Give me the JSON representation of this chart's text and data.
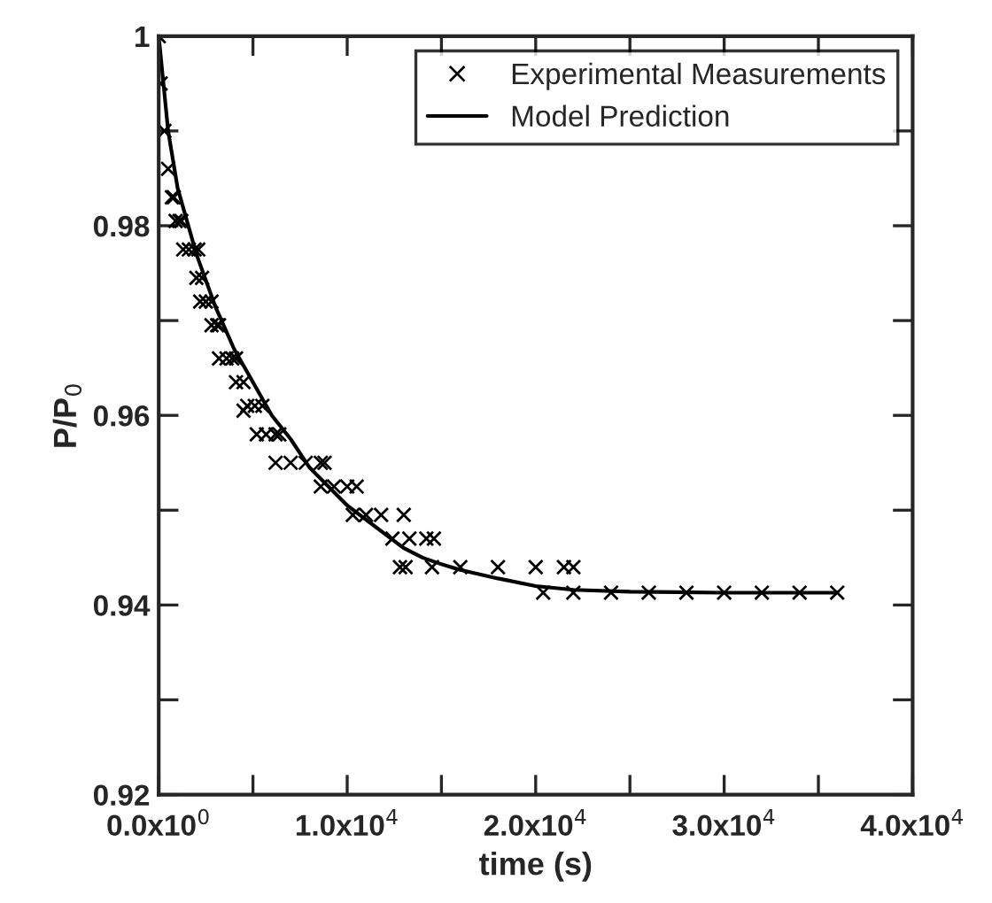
{
  "chart_data": {
    "type": "scatter",
    "xlabel": "time (s)",
    "ylabel": "P/P$_{0}$",
    "xlim": [
      0,
      40000
    ],
    "ylim": [
      0.92,
      1.0
    ],
    "xticks": [
      {
        "value": 0,
        "label": "0.0x10$^{0}$"
      },
      {
        "value": 5000,
        "label": null
      },
      {
        "value": 10000,
        "label": "1.0x10$^{4}$"
      },
      {
        "value": 15000,
        "label": null
      },
      {
        "value": 20000,
        "label": "2.0x10$^{4}$"
      },
      {
        "value": 25000,
        "label": null
      },
      {
        "value": 30000,
        "label": "3.0x10$^{4}$"
      },
      {
        "value": 35000,
        "label": null
      },
      {
        "value": 40000,
        "label": "4.0x10$^{4}$"
      }
    ],
    "yticks": [
      0.92,
      {
        "value": 0.93,
        "label": null
      },
      0.94,
      {
        "value": 0.95,
        "label": null
      },
      0.96,
      {
        "value": 0.97,
        "label": null
      },
      0.98,
      {
        "value": 0.99,
        "label": null
      },
      1
    ],
    "grid": false,
    "legend": "top right",
    "series": [
      {
        "name": "Experimental Measurements",
        "marker": "cross",
        "color": "#000000",
        "x": [
          0,
          100,
          300,
          500,
          700,
          800,
          900,
          1100,
          1200,
          1300,
          1600,
          1900,
          2100,
          2000,
          2300,
          2200,
          2500,
          2800,
          2800,
          3100,
          3200,
          3200,
          3600,
          3900,
          4100,
          4100,
          4500,
          4500,
          4700,
          5100,
          5500,
          5200,
          5700,
          6200,
          6400,
          6200,
          7000,
          7800,
          8600,
          8800,
          8600,
          9300,
          10000,
          10500,
          10300,
          11000,
          11800,
          13000,
          12400,
          13300,
          14200,
          12800,
          14600,
          13100,
          14500,
          16000,
          18000,
          20000,
          21500,
          22000,
          20400,
          22000,
          24000,
          26000,
          28000,
          30000,
          32000,
          34000,
          36000
        ],
        "values": [
          1.0,
          0.995,
          0.99,
          0.986,
          0.983,
          0.983,
          0.9805,
          0.9805,
          0.9805,
          0.9775,
          0.9775,
          0.9775,
          0.9775,
          0.9745,
          0.9745,
          0.972,
          0.972,
          0.972,
          0.9695,
          0.9695,
          0.9695,
          0.966,
          0.966,
          0.966,
          0.966,
          0.9635,
          0.9635,
          0.9605,
          0.961,
          0.961,
          0.961,
          0.958,
          0.958,
          0.958,
          0.958,
          0.955,
          0.955,
          0.955,
          0.955,
          0.955,
          0.9525,
          0.9525,
          0.9525,
          0.9525,
          0.9495,
          0.9495,
          0.9495,
          0.9495,
          0.947,
          0.947,
          0.947,
          0.944,
          0.947,
          0.944,
          0.944,
          0.944,
          0.944,
          0.944,
          0.944,
          0.944,
          0.9413,
          0.9413,
          0.9413,
          0.9413,
          0.9413,
          0.9413,
          0.9413,
          0.9413,
          0.9413
        ]
      },
      {
        "name": "Model Prediction",
        "type": "line",
        "line_style": "solid",
        "color": "#000000",
        "x": [
          0,
          500,
          1000,
          2000,
          3000,
          4000,
          5000,
          6000,
          7000,
          8000,
          9000,
          10000,
          11000,
          12000,
          13000,
          14000,
          15000,
          16000,
          18000,
          20000,
          22000,
          25000,
          30000,
          36000
        ],
        "values": [
          1.0,
          0.99,
          0.984,
          0.977,
          0.9715,
          0.967,
          0.9635,
          0.96,
          0.9575,
          0.9545,
          0.9525,
          0.9505,
          0.949,
          0.9475,
          0.946,
          0.945,
          0.9443,
          0.9437,
          0.9428,
          0.942,
          0.9416,
          0.9414,
          0.9413,
          0.9413
        ]
      }
    ]
  }
}
